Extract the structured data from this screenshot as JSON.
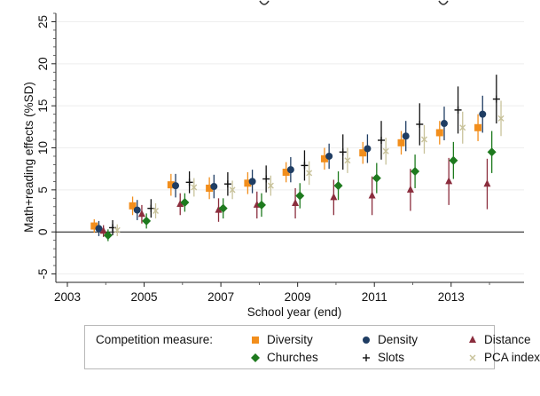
{
  "chart_data": {
    "type": "scatter",
    "subtype": "point-estimates-with-confidence-intervals",
    "title_partial": "...g... ...g...",
    "xlabel": "School year (end)",
    "ylabel": "Math+reading effects (%SD)",
    "xlim": [
      2002.7,
      2014.9
    ],
    "ylim": [
      -6,
      26
    ],
    "xticks": [
      2003,
      2005,
      2007,
      2009,
      2011,
      2013
    ],
    "yticks": [
      -5,
      0,
      5,
      10,
      15,
      20,
      25
    ],
    "grid": "horizontal",
    "reference_line": 0,
    "legend": {
      "title": "Competition measure:",
      "position": "bottom"
    },
    "x": [
      2004,
      2005,
      2006,
      2007,
      2008,
      2009,
      2010,
      2011,
      2012,
      2013,
      2014
    ],
    "series": [
      {
        "name": "Diversity",
        "color": "#f28e1c",
        "marker": "square",
        "offset": -0.3,
        "values": [
          0.7,
          3.1,
          5.6,
          5.2,
          5.8,
          7.1,
          8.7,
          9.4,
          10.6,
          11.8,
          12.4
        ],
        "ci_low": [
          -0.1,
          2.0,
          4.3,
          3.9,
          4.5,
          5.9,
          7.4,
          8.1,
          9.2,
          10.4,
          10.8
        ],
        "ci_high": [
          1.5,
          4.2,
          6.9,
          6.5,
          7.1,
          8.3,
          10.0,
          10.7,
          12.0,
          13.2,
          14.0
        ]
      },
      {
        "name": "Density",
        "color": "#1f3d63",
        "marker": "circle",
        "offset": -0.18,
        "values": [
          0.4,
          2.6,
          5.5,
          5.4,
          6.0,
          7.4,
          9.0,
          9.9,
          11.4,
          12.9,
          14.0
        ],
        "ci_low": [
          -0.5,
          1.4,
          4.1,
          4.0,
          4.6,
          5.9,
          7.5,
          8.2,
          9.6,
          10.9,
          11.8
        ],
        "ci_high": [
          1.3,
          3.8,
          6.9,
          6.8,
          7.4,
          8.9,
          10.5,
          11.6,
          13.2,
          14.9,
          16.2
        ]
      },
      {
        "name": "Distance",
        "color": "#8b2d3d",
        "marker": "triangle",
        "offset": -0.06,
        "values": [
          0.1,
          2.1,
          3.3,
          2.6,
          3.2,
          3.4,
          4.1,
          4.3,
          5.0,
          6.0,
          5.7
        ],
        "ci_low": [
          -0.6,
          1.0,
          2.0,
          1.2,
          1.6,
          1.6,
          2.0,
          2.0,
          2.5,
          3.2,
          2.7
        ],
        "ci_high": [
          0.8,
          3.2,
          4.6,
          4.0,
          4.8,
          5.2,
          6.2,
          6.6,
          7.5,
          8.8,
          8.7
        ]
      },
      {
        "name": "Churches",
        "color": "#1e7a1e",
        "marker": "diamond",
        "offset": 0.06,
        "values": [
          -0.4,
          1.3,
          3.5,
          2.8,
          3.2,
          4.3,
          5.5,
          6.4,
          7.2,
          8.5,
          9.5
        ],
        "ci_low": [
          -1.1,
          0.4,
          2.4,
          1.6,
          1.8,
          2.8,
          3.8,
          4.6,
          5.2,
          6.3,
          7.0
        ],
        "ci_high": [
          0.3,
          2.2,
          4.6,
          4.0,
          4.6,
          5.8,
          7.2,
          8.2,
          9.2,
          10.7,
          12.0
        ]
      },
      {
        "name": "Slots",
        "color": "#111111",
        "marker": "plus",
        "offset": 0.18,
        "values": [
          0.5,
          2.8,
          5.9,
          5.7,
          6.3,
          7.9,
          9.5,
          10.9,
          12.8,
          14.5,
          15.8
        ],
        "ci_low": [
          -0.4,
          1.7,
          4.6,
          4.3,
          4.7,
          6.1,
          7.4,
          8.6,
          10.3,
          11.7,
          12.9
        ],
        "ci_high": [
          1.4,
          3.9,
          7.2,
          7.1,
          7.9,
          9.7,
          11.6,
          13.2,
          15.3,
          17.3,
          18.7
        ]
      },
      {
        "name": "PCA index",
        "color": "#c8c29a",
        "marker": "x",
        "offset": 0.3,
        "values": [
          0.2,
          2.5,
          5.3,
          5.0,
          5.5,
          7.0,
          8.5,
          9.6,
          11.0,
          12.4,
          13.5
        ],
        "ci_low": [
          -0.5,
          1.6,
          4.2,
          3.9,
          4.3,
          5.6,
          7.0,
          8.0,
          9.3,
          10.5,
          11.4
        ],
        "ci_high": [
          0.9,
          3.4,
          6.4,
          6.1,
          6.7,
          8.4,
          10.0,
          11.2,
          12.7,
          14.3,
          15.6
        ]
      }
    ]
  }
}
